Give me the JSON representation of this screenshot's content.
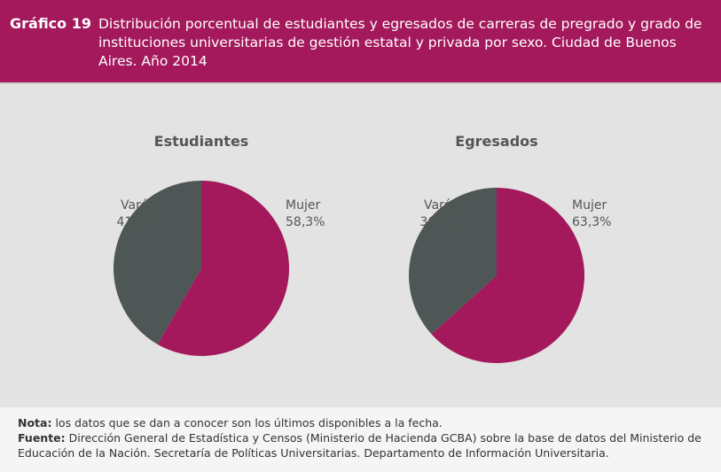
{
  "header": {
    "number": "Gráfico 19",
    "title": "Distribución porcentual de estudiantes y egresados de carreras de pregrado y grado de instituciones universitarias de gestión estatal y privada por sexo. Ciudad de Buenos Aires. Año 2014"
  },
  "chart_data": [
    {
      "type": "pie",
      "title": "Estudiantes",
      "slices": [
        {
          "label": "Mujer",
          "value": 58.3,
          "value_label": "58,3%",
          "color": "#a3195b"
        },
        {
          "label": "Varón",
          "value": 41.7,
          "value_label": "41,7%",
          "color": "#4e5656"
        }
      ]
    },
    {
      "type": "pie",
      "title": "Egresados",
      "slices": [
        {
          "label": "Mujer",
          "value": 63.3,
          "value_label": "63,3%",
          "color": "#a3195b"
        },
        {
          "label": "Varón",
          "value": 36.7,
          "value_label": "36,7%",
          "color": "#4e5656"
        }
      ]
    }
  ],
  "footer": {
    "nota_label": "Nota:",
    "nota_text": " los datos que se dan a conocer son los últimos disponibles a la fecha.",
    "fuente_label": "Fuente:",
    "fuente_text": " Dirección General de Estadística y Censos (Ministerio de Hacienda GCBA) sobre la base de datos del Ministerio de Educación de la Nación. Secretaría de Políticas Universitarias. Departamento de Información Universitaria."
  }
}
